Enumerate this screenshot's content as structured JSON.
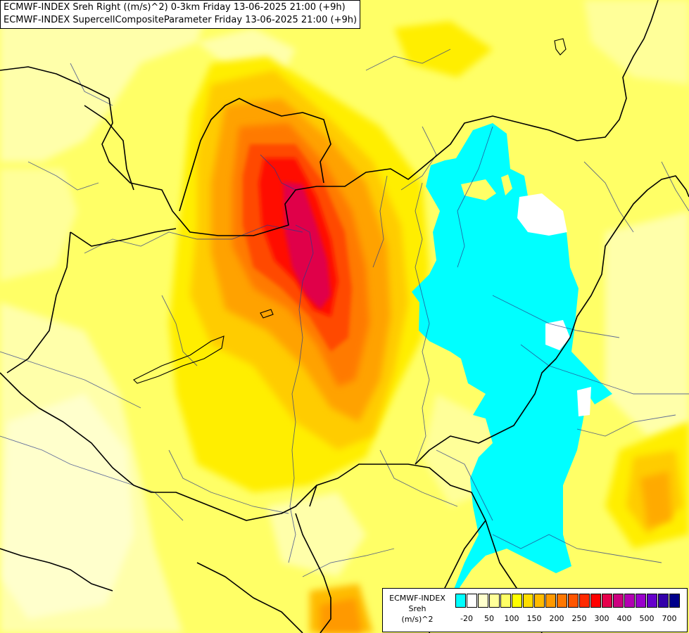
{
  "title": {
    "line1": "ECMWF-INDEX Sreh Right ((m/s)^2) 0-3km Friday 13-06-2025 21:00 (+9h)",
    "line2": "ECMWF-INDEX SupercellCompositeParameter Friday 13-06-2025 21:00 (+9h)"
  },
  "legend": {
    "line1": "ECMWF-INDEX",
    "line2": "Sreh",
    "line3": "(m/s)^2",
    "colors": [
      "#00ffff",
      "#ffffff",
      "#ffffcc",
      "#ffff99",
      "#ffff66",
      "#ffff00",
      "#ffdd00",
      "#ffbb00",
      "#ff9900",
      "#ff7700",
      "#ff5500",
      "#ff2a00",
      "#ff0000",
      "#e6004c",
      "#cc0080",
      "#b300b3",
      "#9900cc",
      "#6600cc",
      "#3300aa",
      "#00008b"
    ],
    "ticks": [
      {
        "label": "-20",
        "after": 1
      },
      {
        "label": "50",
        "after": 3
      },
      {
        "label": "100",
        "after": 5
      },
      {
        "label": "150",
        "after": 7
      },
      {
        "label": "200",
        "after": 9
      },
      {
        "label": "250",
        "after": 11
      },
      {
        "label": "300",
        "after": 13
      },
      {
        "label": "400",
        "after": 15
      },
      {
        "label": "500",
        "after": 17
      },
      {
        "label": "700",
        "after": 19
      }
    ]
  }
}
